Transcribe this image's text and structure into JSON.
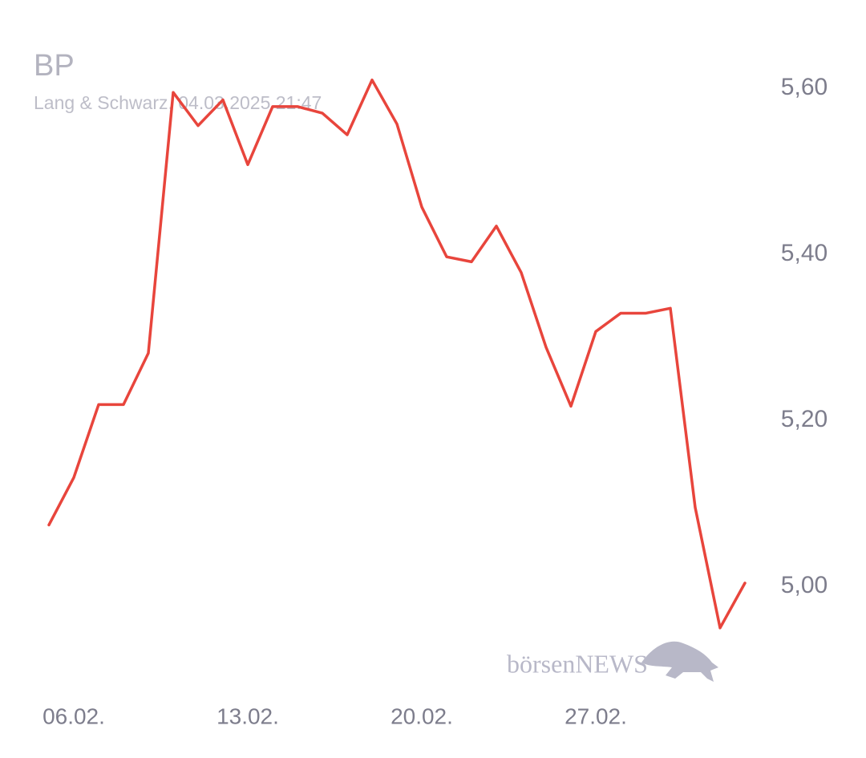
{
  "chart_data": {
    "type": "line",
    "title": "BP",
    "subtitle": "Lang & Schwarz, 04.03.2025 21:47",
    "watermark": "börsenNEWS",
    "categories": [
      null,
      "06.02.",
      null,
      null,
      null,
      null,
      null,
      null,
      "13.02.",
      null,
      null,
      null,
      null,
      null,
      null,
      "20.02.",
      null,
      null,
      null,
      null,
      null,
      null,
      "27.02.",
      null,
      null,
      null,
      null,
      null,
      null
    ],
    "series": [
      {
        "name": "BP",
        "color": "#e8453c",
        "values": [
          5.074,
          5.131,
          5.219,
          5.219,
          5.281,
          5.595,
          5.555,
          5.586,
          5.508,
          5.578,
          5.578,
          5.57,
          5.544,
          5.61,
          5.557,
          5.457,
          5.397,
          5.391,
          5.434,
          5.378,
          5.288,
          5.217,
          5.307,
          5.329,
          5.329,
          5.335,
          5.095,
          4.95,
          5.004
        ]
      }
    ],
    "ylim": [
      4.93,
      5.63
    ],
    "yticks": [
      {
        "value": 5.0,
        "label": "5,00"
      },
      {
        "value": 5.2,
        "label": "5,20"
      },
      {
        "value": 5.4,
        "label": "5,40"
      },
      {
        "value": 5.6,
        "label": "5,60"
      }
    ],
    "grid": false
  }
}
